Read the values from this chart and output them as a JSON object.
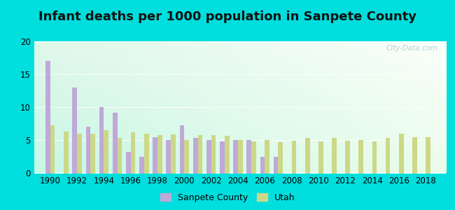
{
  "title": "Infant deaths per 1000 population in Sanpete County",
  "years": [
    1990,
    1991,
    1992,
    1993,
    1994,
    1995,
    1996,
    1997,
    1998,
    1999,
    2000,
    2001,
    2002,
    2003,
    2004,
    2005,
    2006,
    2007,
    2008,
    2009,
    2010,
    2011,
    2012,
    2013,
    2014,
    2015,
    2016,
    2017,
    2018
  ],
  "sanpete": [
    17.0,
    0,
    13.0,
    7.0,
    10.0,
    9.2,
    3.2,
    2.5,
    5.5,
    5.0,
    7.2,
    5.3,
    5.0,
    4.8,
    5.0,
    5.0,
    2.5,
    2.5,
    0,
    0,
    0,
    0,
    0,
    0,
    0,
    0,
    0,
    0,
    0
  ],
  "utah": [
    7.2,
    6.3,
    6.0,
    6.0,
    6.5,
    5.3,
    6.2,
    6.0,
    5.8,
    5.9,
    5.0,
    5.8,
    5.8,
    5.7,
    5.0,
    4.8,
    5.0,
    4.7,
    4.9,
    5.3,
    4.8,
    5.3,
    4.9,
    5.0,
    4.8,
    5.3,
    6.0,
    5.5,
    5.5
  ],
  "bar_color_sanpete": "#c0a8d8",
  "bar_color_utah": "#ccd888",
  "outer_bg": "#00dede",
  "ylim": [
    0,
    20
  ],
  "yticks": [
    0,
    5,
    10,
    15,
    20
  ],
  "title_fontsize": 13,
  "watermark": "City-Data.com",
  "legend_sanpete": "Sanpete County",
  "legend_utah": "Utah",
  "bar_width": 0.35
}
